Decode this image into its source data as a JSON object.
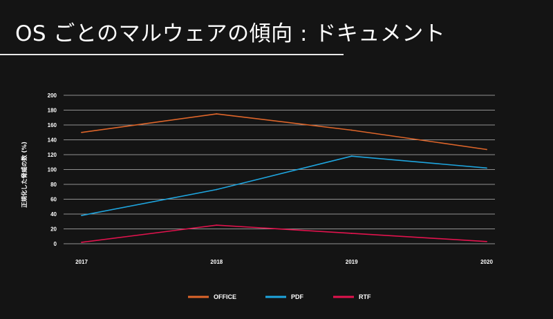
{
  "slide": {
    "title": "OS ごとのマルウェアの傾向 : ドキュメント"
  },
  "chart_data": {
    "type": "line",
    "title": "",
    "xlabel": "",
    "ylabel": "正規化した脅威の数 (%)",
    "categories": [
      "2017",
      "2018",
      "2019",
      "2020"
    ],
    "ylim": [
      0,
      200
    ],
    "yticks": [
      0,
      20,
      40,
      60,
      80,
      100,
      120,
      140,
      160,
      180,
      200
    ],
    "grid": true,
    "legend_position": "bottom",
    "series": [
      {
        "name": "OFFICE",
        "color": "#e0662a",
        "values": [
          150,
          175,
          153,
          127
        ]
      },
      {
        "name": "PDF",
        "color": "#1ea6e0",
        "values": [
          38,
          73,
          118,
          102
        ]
      },
      {
        "name": "RTF",
        "color": "#e3134e",
        "values": [
          2,
          25,
          14,
          3
        ]
      }
    ]
  }
}
